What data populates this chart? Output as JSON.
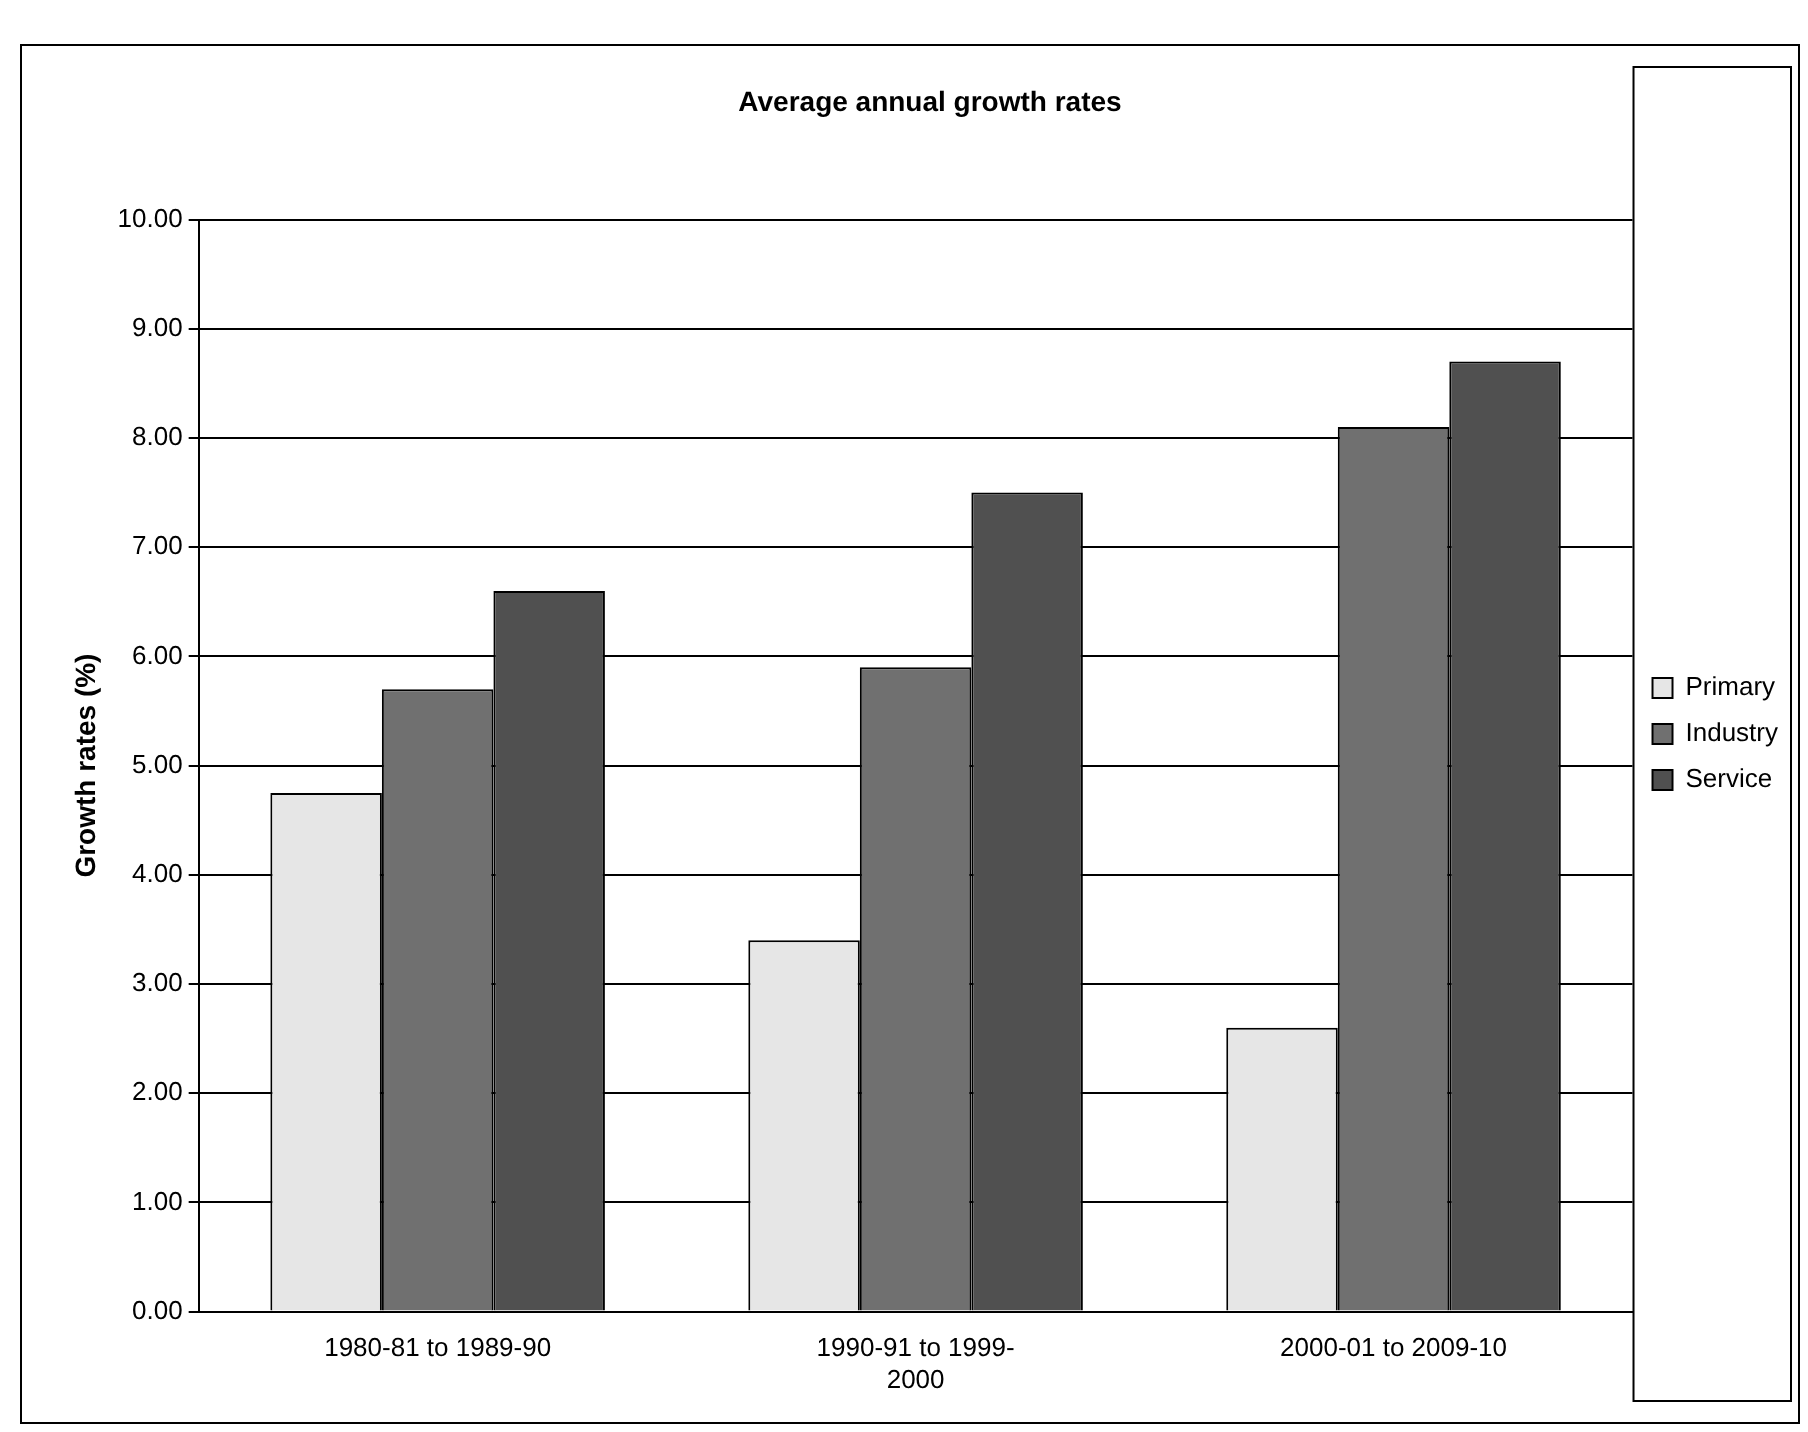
{
  "chart_data": {
    "type": "bar",
    "title": "Average annual growth rates",
    "ylabel": "Growth rates (%)",
    "categories": [
      "1980-81 to 1989-90",
      "1990-91 to 1999-2000",
      "2000-01 to 2009-10"
    ],
    "series": [
      {
        "name": "Primary",
        "color": "#e6e6e6",
        "values": [
          4.75,
          3.4,
          2.6
        ]
      },
      {
        "name": "Industry",
        "color": "#707070",
        "values": [
          5.7,
          5.9,
          8.1
        ]
      },
      {
        "name": "Service",
        "color": "#505050",
        "values": [
          6.6,
          7.5,
          8.7
        ]
      }
    ],
    "ylim": [
      0,
      10
    ],
    "yticks": [
      {
        "value": 0,
        "label": "0.00"
      },
      {
        "value": 1,
        "label": "1.00"
      },
      {
        "value": 2,
        "label": "2.00"
      },
      {
        "value": 3,
        "label": "3.00"
      },
      {
        "value": 4,
        "label": "4.00"
      },
      {
        "value": 5,
        "label": "5.00"
      },
      {
        "value": 6,
        "label": "6.00"
      },
      {
        "value": 7,
        "label": "7.00"
      },
      {
        "value": 8,
        "label": "8.00"
      },
      {
        "value": 9,
        "label": "9.00"
      },
      {
        "value": 10,
        "label": "10.00"
      }
    ],
    "grid": "y",
    "legend": "right"
  }
}
